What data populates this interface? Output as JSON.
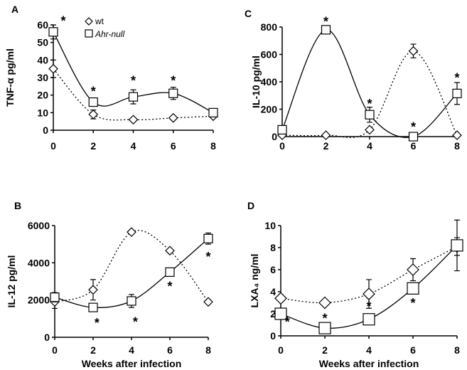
{
  "legend": {
    "wt": "wt",
    "ahr": "Ahr-null"
  },
  "colors": {
    "line": "#000000",
    "marker_fill": "#ffffff"
  },
  "chart_data": [
    {
      "panel": "A",
      "type": "line",
      "ylabel": "TNF-α pg/ml",
      "xlabel": "",
      "x": [
        0,
        2,
        4,
        6,
        8
      ],
      "xticks": [
        "0",
        "2",
        "4",
        "6",
        "8"
      ],
      "yticks": [
        "0",
        "10",
        "20",
        "30",
        "40",
        "50",
        "60"
      ],
      "ylim": [
        0,
        60
      ],
      "xlim": [
        0,
        8
      ],
      "series": [
        {
          "name": "wt",
          "marker": "diamond",
          "style": "dotted",
          "values": [
            35,
            9,
            6,
            7,
            8
          ],
          "err": [
            5,
            2.5,
            0,
            0,
            0
          ]
        },
        {
          "name": "Ahr-null",
          "marker": "square",
          "style": "solid",
          "values": [
            56,
            16,
            19,
            21,
            10
          ],
          "err": [
            4,
            0,
            4,
            3.5,
            0
          ]
        }
      ],
      "significance": [
        [
          0.5,
          63
        ],
        [
          2,
          23
        ],
        [
          4,
          29
        ],
        [
          6,
          29
        ]
      ],
      "legend_placement": "top-center"
    },
    {
      "panel": "C",
      "type": "line",
      "ylabel": "IL-10 pg/ml",
      "xlabel": "",
      "x": [
        0,
        2,
        4,
        6,
        8
      ],
      "xticks": [
        "0",
        "2",
        "4",
        "6",
        "8"
      ],
      "yticks": [
        "0",
        "200",
        "400",
        "600",
        "800"
      ],
      "ylim": [
        0,
        800
      ],
      "xlim": [
        0,
        8
      ],
      "series": [
        {
          "name": "wt",
          "marker": "diamond",
          "style": "dotted",
          "values": [
            10,
            10,
            50,
            625,
            10
          ],
          "err": [
            0,
            0,
            0,
            50,
            0
          ]
        },
        {
          "name": "Ahr-null",
          "marker": "square",
          "style": "solid",
          "values": [
            50,
            780,
            160,
            0,
            315
          ],
          "err": [
            0,
            0,
            55,
            0,
            80
          ]
        }
      ],
      "significance": [
        [
          2,
          850
        ],
        [
          4,
          250
        ],
        [
          6,
          80
        ],
        [
          8,
          440
        ]
      ]
    },
    {
      "panel": "B",
      "type": "line",
      "ylabel": "IL-12 pg/ml",
      "xlabel": "Weeks after infection",
      "x": [
        0,
        2,
        4,
        6,
        8
      ],
      "xticks": [
        "0",
        "2",
        "4",
        "6",
        "8"
      ],
      "yticks": [
        "0",
        "2000",
        "4000",
        "6000"
      ],
      "ylim": [
        0,
        6000
      ],
      "xlim": [
        0,
        8
      ],
      "series": [
        {
          "name": "wt",
          "marker": "diamond",
          "style": "dotted",
          "values": [
            1900,
            2550,
            5650,
            4650,
            1900
          ],
          "err": [
            350,
            550,
            0,
            0,
            0
          ]
        },
        {
          "name": "Ahr-null",
          "marker": "square",
          "style": "solid",
          "values": [
            2150,
            1600,
            1950,
            3500,
            5300
          ],
          "err": [
            250,
            200,
            350,
            0,
            300
          ]
        }
      ],
      "significance": [
        [
          2.2,
          850
        ],
        [
          4.2,
          900
        ],
        [
          6,
          2800
        ],
        [
          8,
          4400
        ]
      ]
    },
    {
      "panel": "D",
      "type": "line",
      "ylabel": "LXA₄ ng/ml",
      "xlabel": "Weeks after infection",
      "x": [
        0,
        2,
        4,
        6,
        8
      ],
      "xticks": [
        "0",
        "2",
        "4",
        "6",
        "8"
      ],
      "yticks": [
        "0",
        "2",
        "4",
        "6",
        "8",
        "10"
      ],
      "ylim": [
        0,
        10
      ],
      "xlim": [
        0,
        8
      ],
      "series": [
        {
          "name": "wt",
          "marker": "diamond",
          "style": "dotted",
          "values": [
            3.4,
            3.0,
            3.8,
            6.0,
            8.1
          ],
          "err": [
            0,
            0,
            1.3,
            1,
            0.8
          ]
        },
        {
          "name": "Ahr-null",
          "marker": "square",
          "style": "solid",
          "values": [
            2,
            0.7,
            1.5,
            4.3,
            8.2
          ],
          "err": [
            0,
            0,
            0,
            0,
            2.3
          ]
        }
      ],
      "significance": [
        [
          0.3,
          1.4
        ],
        [
          2,
          1.7
        ],
        [
          4,
          2.8
        ],
        [
          6,
          3.1
        ]
      ]
    }
  ]
}
